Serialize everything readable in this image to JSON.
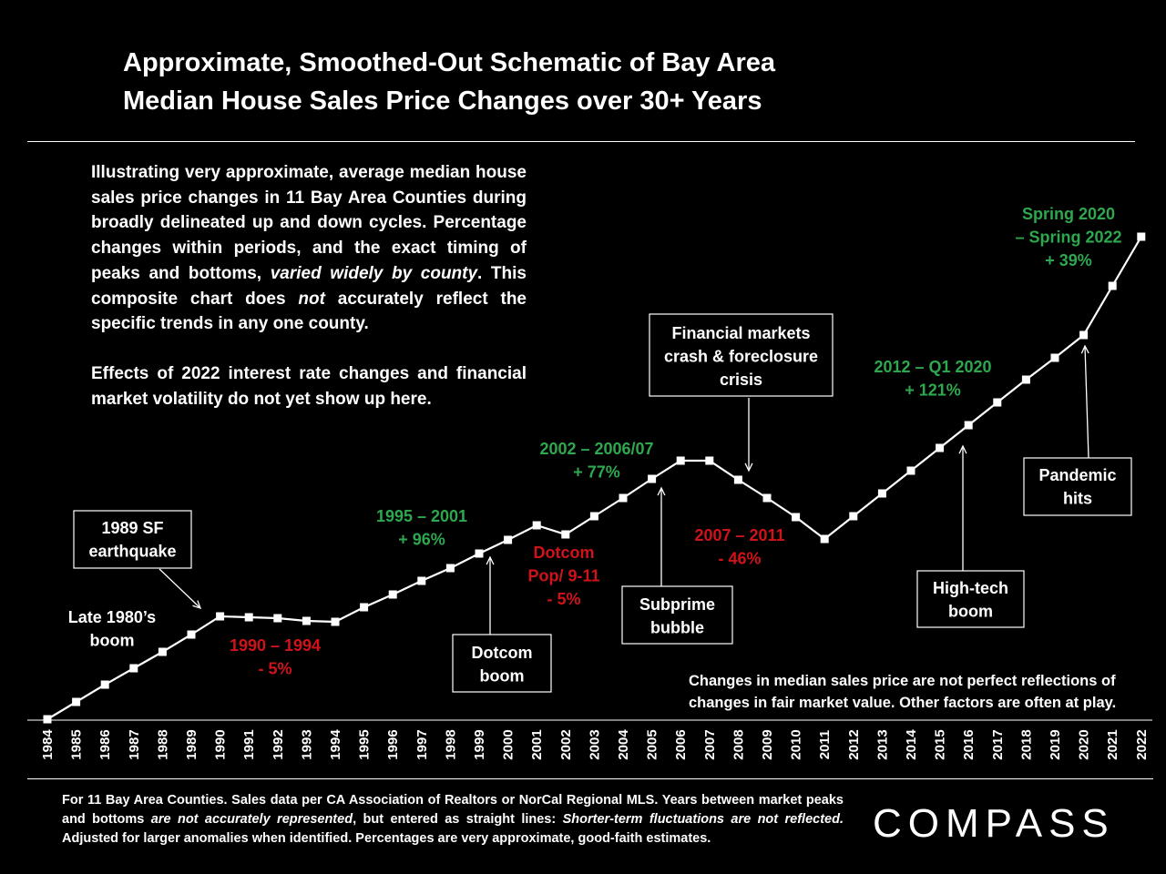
{
  "header": {
    "title_line1": "Approximate, Smoothed-Out Schematic of Bay Area",
    "title_line2": "Median House Sales Price Changes over 30+ Years"
  },
  "intro": {
    "p1_a": "Illustrating very approximate, average median house sales price changes in 11 Bay Area Counties during broadly delineated up and down cycles. Percentage changes within periods, and the exact timing of peaks and bottoms, ",
    "p1_b": "varied widely by county",
    "p1_c": ". This composite chart does ",
    "p1_d": "not",
    "p1_e": " accurately reflect the specific trends in any one county.",
    "p2": "Effects of 2022 interest rate changes and financial market volatility do not yet show up here."
  },
  "note": "Changes in median sales price are not perfect reflections of changes in fair market value. Other factors are often at play.",
  "source": {
    "a": "For 11 Bay Area Counties. Sales data per CA Association of Realtors or NorCal Regional MLS. Years between market peaks and bottoms ",
    "b": "are not accurately represented",
    "c": ", but entered as straight lines: ",
    "d": "Shorter-term fluctuations are not reflected.",
    "e": " Adjusted for larger anomalies when identified. Percentages are very approximate, good-faith estimates."
  },
  "logo": "COMPASS",
  "colors": {
    "up": "#2ea84f",
    "down": "#d0121b",
    "line": "#ffffff",
    "bg": "#000000"
  },
  "chart_data": {
    "type": "line",
    "title": "Approximate, Smoothed-Out Schematic of Bay Area Median House Sales Price Changes over 30+ Years",
    "categories": [
      "1984",
      "1985",
      "1986",
      "1987",
      "1988",
      "1989",
      "1990",
      "1991",
      "1992",
      "1993",
      "1994",
      "1995",
      "1996",
      "1997",
      "1998",
      "1999",
      "2000",
      "2001",
      "2002",
      "2003",
      "2004",
      "2005",
      "2006",
      "2007",
      "2008",
      "2009",
      "2010",
      "2011",
      "2012",
      "2013",
      "2014",
      "2015",
      "2016",
      "2017",
      "2018",
      "2019",
      "2020",
      "2021",
      "2022"
    ],
    "values": [
      0,
      19,
      38,
      56,
      74,
      93,
      113,
      112,
      111,
      108,
      107,
      123,
      137,
      152,
      166,
      182,
      197,
      213,
      203,
      223,
      243,
      264,
      284,
      284,
      263,
      243,
      222,
      198,
      223,
      248,
      273,
      298,
      323,
      348,
      373,
      397,
      422,
      476,
      530
    ],
    "y_axis_visible": false,
    "annotations": [
      {
        "kind": "label",
        "text": [
          "Late 1980’s",
          "boom"
        ],
        "color": "white"
      },
      {
        "kind": "box",
        "text": [
          "1989 SF",
          "earthquake"
        ]
      },
      {
        "kind": "label",
        "text": [
          "1990 – 1994",
          "- 5%"
        ],
        "color": "down"
      },
      {
        "kind": "label",
        "text": [
          "1995 – 2001",
          "+ 96%"
        ],
        "color": "up"
      },
      {
        "kind": "box",
        "text": [
          "Dotcom",
          "boom"
        ]
      },
      {
        "kind": "label",
        "text": [
          "Dotcom",
          "Pop/ 9-11",
          "- 5%"
        ],
        "color": "down"
      },
      {
        "kind": "label",
        "text": [
          "2002 – 2006/07",
          "+ 77%"
        ],
        "color": "up"
      },
      {
        "kind": "box",
        "text": [
          "Subprime",
          "bubble"
        ]
      },
      {
        "kind": "box",
        "text": [
          "Financial markets",
          "crash & foreclosure",
          "crisis"
        ]
      },
      {
        "kind": "label",
        "text": [
          "2007 – 2011",
          "- 46%"
        ],
        "color": "down"
      },
      {
        "kind": "label",
        "text": [
          "2012 –  Q1 2020",
          "+ 121%"
        ],
        "color": "up"
      },
      {
        "kind": "box",
        "text": [
          "High-tech",
          "boom"
        ]
      },
      {
        "kind": "box",
        "text": [
          "Pandemic",
          "hits"
        ]
      },
      {
        "kind": "label",
        "text": [
          "Spring 2020",
          "– Spring 2022",
          "+ 39%"
        ],
        "color": "up"
      }
    ]
  }
}
